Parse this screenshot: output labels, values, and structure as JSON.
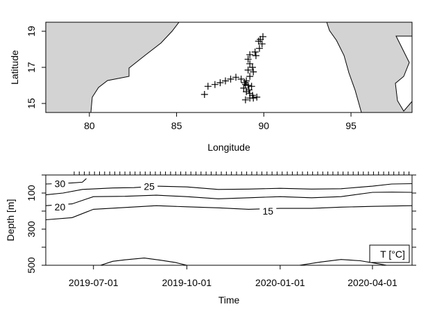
{
  "chart_data": [
    {
      "type": "scatter",
      "xlabel": "Longitude",
      "ylabel": "Latitude",
      "xlim": [
        77.5,
        98.5
      ],
      "ylim": [
        14.5,
        19.5
      ],
      "xticks": [
        "80",
        "85",
        "90",
        "95"
      ],
      "yticks": [
        "15",
        "17",
        "19"
      ],
      "land_color": "#d3d3d3",
      "marker": "plus",
      "points": [
        [
          86.6,
          15.5
        ],
        [
          86.8,
          15.95
        ],
        [
          87.2,
          16.05
        ],
        [
          87.5,
          16.15
        ],
        [
          87.8,
          16.25
        ],
        [
          88.1,
          16.35
        ],
        [
          88.4,
          16.45
        ],
        [
          88.7,
          16.35
        ],
        [
          88.9,
          16.15
        ],
        [
          89.1,
          16.0
        ],
        [
          88.85,
          15.85
        ],
        [
          89.0,
          15.65
        ],
        [
          89.2,
          15.55
        ],
        [
          89.35,
          15.45
        ],
        [
          89.2,
          15.3
        ],
        [
          88.95,
          15.2
        ],
        [
          89.4,
          15.3
        ],
        [
          89.6,
          15.35
        ],
        [
          89.3,
          15.95
        ],
        [
          89.0,
          16.25
        ],
        [
          89.2,
          16.5
        ],
        [
          89.4,
          16.75
        ],
        [
          89.35,
          17.0
        ],
        [
          89.2,
          17.2
        ],
        [
          89.1,
          17.45
        ],
        [
          89.2,
          17.7
        ],
        [
          89.5,
          17.85
        ],
        [
          89.75,
          18.05
        ],
        [
          89.9,
          18.3
        ],
        [
          89.8,
          18.55
        ],
        [
          89.95,
          18.7
        ],
        [
          89.7,
          18.45
        ],
        [
          89.55,
          17.65
        ],
        [
          89.1,
          16.85
        ],
        [
          88.95,
          16.05
        ],
        [
          89.15,
          15.75
        ]
      ]
    },
    {
      "type": "contour",
      "xlabel": "Time",
      "ylabel": "Depth [m]",
      "legend": "T [°C]",
      "y_reversed": true,
      "xlim": [
        "2019-05-15",
        "2020-05-10"
      ],
      "ylim": [
        500,
        0
      ],
      "xticks": [
        {
          "date": "2019-07-01",
          "label": "2019-07-01"
        },
        {
          "date": "2019-10-01",
          "label": "2019-10-01"
        },
        {
          "date": "2020-01-01",
          "label": "2020-01-01"
        },
        {
          "date": "2020-04-01",
          "label": "2020-04-01"
        }
      ],
      "yticks": [
        "100",
        "300",
        "500"
      ],
      "levels": [
        {
          "value": "30",
          "points": [
            [
              "2019-05-15",
              50
            ],
            [
              "2019-05-25",
              48
            ],
            [
              "2019-06-10",
              44
            ],
            [
              "2019-06-20",
              40
            ],
            [
              "2019-06-24",
              20
            ]
          ],
          "label_at": [
            "2019-05-29",
            48
          ]
        },
        {
          "value": "25",
          "points": [
            [
              "2019-05-15",
              110
            ],
            [
              "2019-06-01",
              100
            ],
            [
              "2019-06-20",
              80
            ],
            [
              "2019-07-20",
              72
            ],
            [
              "2019-08-10",
              70
            ],
            [
              "2019-09-01",
              62
            ],
            [
              "2019-10-01",
              66
            ],
            [
              "2019-11-01",
              80
            ],
            [
              "2019-12-01",
              78
            ],
            [
              "2020-01-01",
              74
            ],
            [
              "2020-02-01",
              78
            ],
            [
              "2020-03-01",
              76
            ],
            [
              "2020-04-01",
              62
            ],
            [
              "2020-04-20",
              50
            ],
            [
              "2020-05-10",
              48
            ]
          ],
          "label_at": [
            "2019-08-25",
            63
          ]
        },
        {
          "value": "20",
          "points": [
            [
              "2019-05-15",
              170
            ],
            [
              "2019-06-10",
              160
            ],
            [
              "2019-07-01",
              120
            ],
            [
              "2019-08-01",
              118
            ],
            [
              "2019-09-01",
              112
            ],
            [
              "2019-10-01",
              120
            ],
            [
              "2019-11-01",
              132
            ],
            [
              "2019-12-01",
              126
            ],
            [
              "2020-01-01",
              120
            ],
            [
              "2020-02-01",
              126
            ],
            [
              "2020-03-01",
              120
            ],
            [
              "2020-04-01",
              96
            ],
            [
              "2020-04-20",
              95
            ],
            [
              "2020-05-10",
              96
            ]
          ],
          "label_at": [
            "2019-05-29",
            176
          ]
        },
        {
          "value": "15",
          "points": [
            [
              "2019-05-15",
              248
            ],
            [
              "2019-06-10",
              236
            ],
            [
              "2019-07-01",
              190
            ],
            [
              "2019-08-01",
              180
            ],
            [
              "2019-09-01",
              170
            ],
            [
              "2019-10-01",
              176
            ],
            [
              "2019-11-01",
              182
            ],
            [
              "2019-12-01",
              190
            ],
            [
              "2020-01-01",
              185
            ],
            [
              "2020-02-01",
              185
            ],
            [
              "2020-03-01",
              178
            ],
            [
              "2020-04-01",
              174
            ],
            [
              "2020-04-20",
              172
            ],
            [
              "2020-05-10",
              170
            ]
          ],
          "label_at": [
            "2019-12-20",
            200
          ]
        },
        {
          "value": "",
          "points": [
            [
              "2019-07-08",
              500
            ],
            [
              "2019-07-20",
              478
            ],
            [
              "2019-08-01",
              470
            ],
            [
              "2019-08-20",
              460
            ],
            [
              "2019-09-05",
              472
            ],
            [
              "2019-09-20",
              485
            ],
            [
              "2019-10-01",
              500
            ]
          ],
          "label_at": null
        },
        {
          "value": "",
          "points": [
            [
              "2020-01-20",
              500
            ],
            [
              "2020-02-10",
              482
            ],
            [
              "2020-03-01",
              468
            ],
            [
              "2020-03-20",
              475
            ],
            [
              "2020-04-05",
              490
            ],
            [
              "2020-04-15",
              500
            ]
          ],
          "label_at": null
        }
      ]
    }
  ]
}
